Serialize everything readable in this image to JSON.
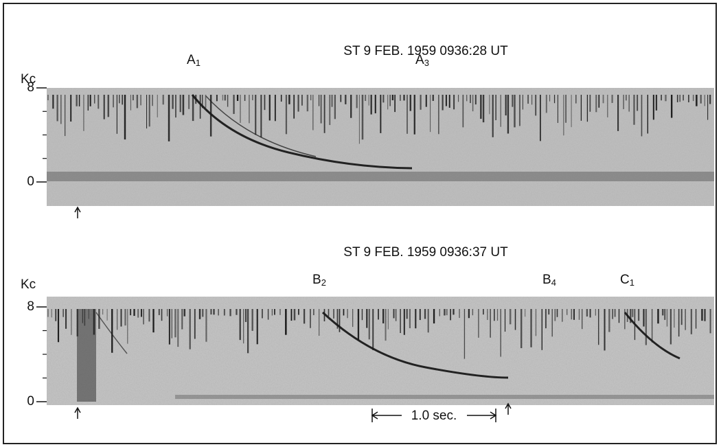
{
  "panels": [
    {
      "title": "ST 9 FEB. 1959 0936:28 UT",
      "axis_label": "Kc",
      "yticks": [
        0,
        8
      ],
      "labels": [
        {
          "letter": "A",
          "sub": "1"
        },
        {
          "letter": "A",
          "sub": "3"
        }
      ]
    },
    {
      "title": "ST 9 FEB. 1959 0936:37 UT",
      "axis_label": "Kc",
      "yticks": [
        0,
        8
      ],
      "labels": [
        {
          "letter": "B",
          "sub": "2"
        },
        {
          "letter": "B",
          "sub": "4"
        },
        {
          "letter": "C",
          "sub": "1"
        }
      ]
    }
  ],
  "scale_bar": "1.0 sec."
}
